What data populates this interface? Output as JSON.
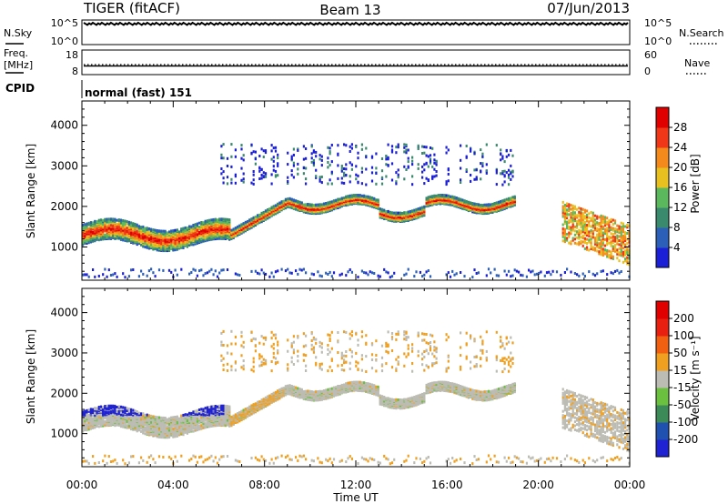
{
  "header": {
    "radar": "TIGER (fitACF)",
    "beam": "Beam 13",
    "date": "07/Jun/2013"
  },
  "nsky_panel": {
    "left_label": "N.Sky",
    "right_label": "N.Search",
    "left_ticks": [
      "10^5",
      "10^0"
    ],
    "right_ticks": [
      "10^5",
      "10^0"
    ]
  },
  "freq_panel": {
    "left_label_line1": "Freq.",
    "left_label_line2": "[MHz]",
    "right_label": "Nave",
    "left_ticks": [
      "18",
      "8"
    ],
    "right_ticks": [
      "60",
      "0"
    ],
    "freq_mhz": 11.5
  },
  "cpid": {
    "label": "CPID",
    "value": "normal (fast) 151"
  },
  "x_axis": {
    "label": "Time UT",
    "ticks": [
      "00:00",
      "04:00",
      "08:00",
      "12:00",
      "16:00",
      "20:00",
      "00:00"
    ],
    "range_hours": [
      0,
      24
    ]
  },
  "chart_data": [
    {
      "type": "heatmap",
      "ylabel": "Slant Range [km]",
      "ylim": [
        180,
        4600
      ],
      "yticks": [
        1000,
        2000,
        3000,
        4000
      ],
      "colorbar": {
        "label": "Power [dB]",
        "ticks": [
          "4",
          "8",
          "12",
          "16",
          "20",
          "24",
          "28"
        ],
        "range": [
          0,
          32
        ],
        "colors": [
          "#1b1fd6",
          "#2b5fb8",
          "#3a8a6e",
          "#5cb85c",
          "#e8c020",
          "#f58a1c",
          "#f03818",
          "#e00000"
        ]
      }
    },
    {
      "type": "heatmap",
      "ylabel": "Slant Range [km]",
      "ylim": [
        180,
        4600
      ],
      "yticks": [
        1000,
        2000,
        3000,
        4000
      ],
      "colorbar": {
        "label": "Velocity [m s⁻¹]",
        "ticks": [
          "200",
          "100",
          "50",
          "15",
          "-15",
          "-50",
          "-100",
          "-200"
        ],
        "colors": [
          "#1e22d2",
          "#2050b0",
          "#3c8a58",
          "#6cc040",
          "#bcbcb4",
          "#f0a020",
          "#f06010",
          "#e82010",
          "#e00000"
        ]
      }
    }
  ]
}
